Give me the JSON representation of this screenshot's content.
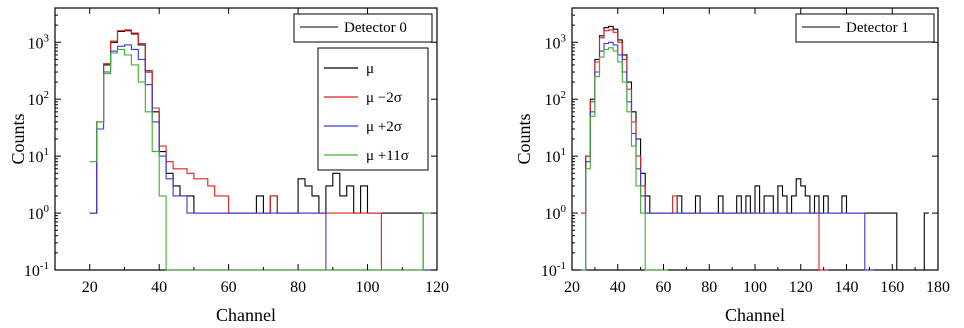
{
  "chart_data": [
    {
      "type": "line",
      "step": true,
      "title": "",
      "xlabel": "Channel",
      "ylabel": "Counts",
      "xlim": [
        10,
        120
      ],
      "ylim": [
        0.1,
        4000
      ],
      "yscale": "log",
      "x_ticks": [
        20,
        40,
        60,
        80,
        100,
        120
      ],
      "y_ticks": [
        {
          "value": 0.1,
          "base": "10",
          "exp": "-1"
        },
        {
          "value": 1,
          "base": "10",
          "exp": "0"
        },
        {
          "value": 10,
          "base": "10",
          "exp": "1"
        },
        {
          "value": 100,
          "base": "10",
          "exp": "2"
        },
        {
          "value": 1000,
          "base": "10",
          "exp": "3"
        }
      ],
      "boxed_label": "Detector 0",
      "legend": {
        "placement": "right",
        "entries": [
          "μ",
          "μ −2σ",
          "μ +2σ",
          "μ +11σ"
        ]
      },
      "series": [
        {
          "color": "#000000",
          "x": [
            20,
            22,
            24,
            26,
            28,
            30,
            32,
            34,
            36,
            38,
            40,
            42,
            44,
            46,
            48,
            50,
            52,
            54,
            56,
            58,
            60,
            62,
            64,
            66,
            68,
            70,
            72,
            74,
            76,
            78,
            80,
            82,
            84,
            86,
            88,
            90,
            92,
            94,
            96,
            98,
            100,
            102,
            104,
            106,
            108,
            110,
            112,
            114,
            116,
            118,
            120
          ],
          "y": [
            1,
            40,
            400,
            1000,
            1550,
            1600,
            1400,
            900,
            300,
            60,
            12,
            5,
            3,
            2,
            2,
            1,
            1,
            1,
            1,
            1,
            1,
            1,
            1,
            1,
            2,
            1,
            2,
            1,
            1,
            1,
            4,
            3,
            2,
            1,
            3,
            5,
            2,
            3,
            1,
            3,
            1,
            1,
            1,
            1,
            1,
            1,
            1,
            1,
            0.1,
            0.1,
            0.1
          ]
        },
        {
          "color": "#e02020",
          "x": [
            20,
            22,
            24,
            26,
            28,
            30,
            32,
            34,
            36,
            38,
            40,
            42,
            44,
            46,
            48,
            50,
            52,
            54,
            56,
            58,
            60,
            62,
            64,
            66,
            68,
            70,
            72,
            74,
            76,
            78,
            80,
            82,
            84,
            86,
            88,
            90,
            92,
            94,
            96,
            98,
            100,
            102,
            104,
            106,
            108,
            110,
            112,
            114,
            116,
            118,
            120
          ],
          "y": [
            1,
            40,
            420,
            1050,
            1600,
            1650,
            1450,
            950,
            320,
            70,
            15,
            8,
            6,
            6,
            5,
            4,
            4,
            3,
            2,
            2,
            1,
            1,
            1,
            1,
            1,
            1,
            2,
            1,
            1,
            1,
            1,
            1,
            1,
            1,
            1,
            1,
            1,
            1,
            1,
            1,
            1,
            1,
            0.1,
            0.1,
            0.1,
            0.1,
            0.1,
            0.1,
            0.1,
            0.1,
            0.1
          ]
        },
        {
          "color": "#3a3ad0",
          "x": [
            20,
            22,
            24,
            26,
            28,
            30,
            32,
            34,
            36,
            38,
            40,
            42,
            44,
            46,
            48,
            50,
            52,
            54,
            56,
            58,
            60,
            62,
            64,
            66,
            68,
            70,
            72,
            74,
            76,
            78,
            80,
            82,
            84,
            86,
            88,
            90,
            92,
            94,
            96,
            98,
            100,
            102,
            104,
            106,
            108,
            110,
            112,
            114,
            116,
            118,
            120
          ],
          "y": [
            1,
            30,
            300,
            700,
            850,
            900,
            750,
            500,
            180,
            40,
            10,
            4,
            2,
            2,
            1,
            1,
            1,
            1,
            1,
            1,
            1,
            1,
            1,
            1,
            1,
            1,
            1,
            1,
            1,
            1,
            1,
            1,
            1,
            1,
            0.1,
            0.1,
            0.1,
            0.1,
            0.1,
            0.1,
            0.1,
            0.1,
            0.1,
            0.1,
            0.1,
            0.1,
            0.1,
            0.1,
            0.1,
            0.1,
            0.1
          ]
        },
        {
          "color": "#40b030",
          "x": [
            20,
            22,
            24,
            26,
            28,
            30,
            32,
            34,
            36,
            38,
            40,
            42,
            44,
            46,
            48,
            50,
            52,
            54,
            56,
            58,
            60,
            62,
            64,
            66,
            68,
            70,
            72,
            74,
            76,
            78,
            80,
            82,
            84,
            86,
            88,
            90,
            92,
            94,
            96,
            98,
            100,
            102,
            104,
            106,
            108,
            110,
            112,
            114,
            116,
            118,
            120
          ],
          "y": [
            8,
            40,
            280,
            650,
            750,
            600,
            400,
            200,
            60,
            12,
            2,
            0.1,
            0.1,
            0.1,
            0.1,
            0.1,
            0.1,
            0.1,
            0.1,
            0.1,
            0.1,
            0.1,
            0.1,
            0.1,
            0.1,
            0.1,
            0.1,
            0.1,
            0.1,
            0.1,
            0.1,
            0.1,
            0.1,
            0.1,
            0.1,
            0.1,
            0.1,
            0.1,
            0.1,
            0.1,
            0.1,
            0.1,
            0.1,
            0.1,
            0.1,
            0.1,
            0.1,
            0.1,
            1,
            1,
            1
          ]
        }
      ]
    },
    {
      "type": "line",
      "step": true,
      "title": "",
      "xlabel": "Channel",
      "ylabel": "Counts",
      "xlim": [
        20,
        180
      ],
      "ylim": [
        0.1,
        4000
      ],
      "yscale": "log",
      "x_ticks": [
        20,
        40,
        60,
        80,
        100,
        120,
        140,
        160,
        180
      ],
      "y_ticks": [
        {
          "value": 0.1,
          "base": "10",
          "exp": "-1"
        },
        {
          "value": 1,
          "base": "10",
          "exp": "0"
        },
        {
          "value": 10,
          "base": "10",
          "exp": "1"
        },
        {
          "value": 100,
          "base": "10",
          "exp": "2"
        },
        {
          "value": 1000,
          "base": "10",
          "exp": "3"
        }
      ],
      "boxed_label": "Detector 1",
      "series": [
        {
          "color": "#000000",
          "x": [
            24,
            26,
            28,
            30,
            32,
            34,
            36,
            38,
            40,
            42,
            44,
            46,
            48,
            50,
            52,
            54,
            56,
            58,
            60,
            62,
            64,
            66,
            68,
            70,
            72,
            74,
            76,
            78,
            80,
            82,
            84,
            86,
            88,
            90,
            92,
            94,
            96,
            98,
            100,
            102,
            104,
            106,
            108,
            110,
            112,
            114,
            116,
            118,
            120,
            122,
            124,
            126,
            128,
            130,
            132,
            134,
            136,
            138,
            140,
            142,
            144,
            146,
            148,
            150,
            152,
            154,
            156,
            158,
            160,
            162,
            164,
            166,
            168,
            170,
            172,
            174
          ],
          "y": [
            1,
            10,
            100,
            500,
            1300,
            1800,
            1900,
            1700,
            1100,
            600,
            200,
            60,
            20,
            5,
            2,
            1,
            1,
            1,
            1,
            1,
            1,
            2,
            1,
            1,
            1,
            2,
            1,
            1,
            1,
            1,
            2,
            1,
            1,
            1,
            2,
            1,
            2,
            1,
            3,
            1,
            2,
            2,
            1,
            3,
            2,
            1,
            2,
            4,
            3,
            2,
            1,
            2,
            1,
            2,
            1,
            1,
            1,
            2,
            1,
            1,
            1,
            1,
            1,
            1,
            1,
            1,
            1,
            1,
            1,
            0.1,
            0.1,
            0.1,
            0.1,
            0.1,
            0.1,
            1
          ]
        },
        {
          "color": "#e02020",
          "x": [
            24,
            26,
            28,
            30,
            32,
            34,
            36,
            38,
            40,
            42,
            44,
            46,
            48,
            50,
            52,
            54,
            56,
            58,
            60,
            62,
            64,
            66,
            68,
            70,
            72,
            74,
            76,
            78,
            80,
            82,
            84,
            86,
            88,
            90,
            92,
            94,
            96,
            98,
            100,
            102,
            104,
            106,
            108,
            110,
            112,
            114,
            116,
            118,
            120,
            122,
            124,
            126,
            128,
            130
          ],
          "y": [
            1,
            10,
            90,
            450,
            1200,
            1600,
            1650,
            1500,
            1000,
            500,
            150,
            40,
            10,
            3,
            1,
            1,
            1,
            1,
            1,
            1,
            2,
            1,
            1,
            1,
            1,
            1,
            1,
            1,
            1,
            1,
            1,
            1,
            1,
            1,
            1,
            1,
            1,
            1,
            1,
            1,
            1,
            1,
            1,
            1,
            1,
            1,
            1,
            1,
            1,
            1,
            1,
            1,
            0.1,
            0.1
          ]
        },
        {
          "color": "#3a3ad0",
          "x": [
            24,
            26,
            28,
            30,
            32,
            34,
            36,
            38,
            40,
            42,
            44,
            46,
            48,
            50,
            52,
            54,
            56,
            58,
            60,
            62,
            64,
            66,
            68,
            70,
            72,
            74,
            76,
            78,
            80,
            82,
            84,
            86,
            88,
            90,
            92,
            94,
            96,
            98,
            100,
            102,
            104,
            106,
            108,
            110,
            112,
            114,
            116,
            118,
            120,
            122,
            124,
            126,
            128,
            130,
            132,
            134,
            136,
            138,
            140,
            142,
            144,
            146,
            148,
            150
          ],
          "y": [
            0.1,
            8,
            60,
            300,
            700,
            950,
            1000,
            900,
            600,
            300,
            90,
            25,
            6,
            2,
            1,
            1,
            1,
            1,
            1,
            1,
            1,
            1,
            1,
            1,
            1,
            1,
            1,
            1,
            1,
            1,
            1,
            1,
            1,
            1,
            1,
            1,
            1,
            1,
            1,
            1,
            1,
            1,
            1,
            1,
            1,
            1,
            1,
            1,
            1,
            1,
            1,
            1,
            1,
            1,
            1,
            1,
            1,
            1,
            1,
            1,
            1,
            1,
            0.1,
            0.1
          ]
        },
        {
          "color": "#40b030",
          "x": [
            24,
            26,
            28,
            30,
            32,
            34,
            36,
            38,
            40,
            42,
            44,
            46,
            48,
            50,
            52,
            54,
            56,
            58,
            60
          ],
          "y": [
            0.1,
            6,
            50,
            250,
            550,
            750,
            800,
            700,
            450,
            200,
            60,
            15,
            3,
            1,
            0.1,
            0.1,
            0.1,
            0.1,
            0.1
          ]
        }
      ]
    }
  ]
}
